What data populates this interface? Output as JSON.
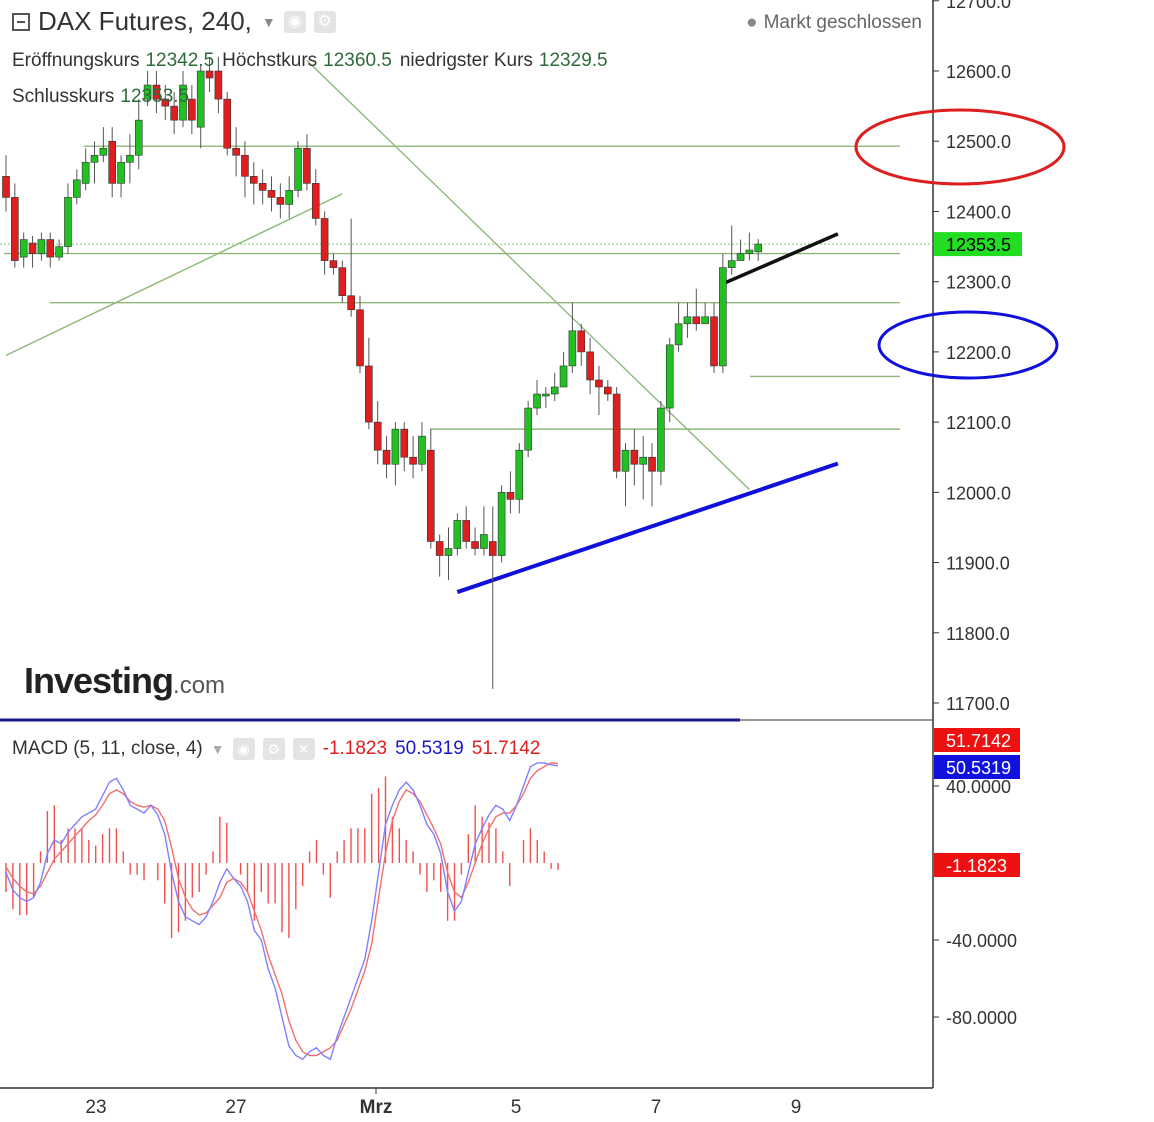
{
  "header": {
    "title": "DAX Futures, 240,",
    "status": "Markt geschlossen",
    "open_label": "Eröffnungskurs",
    "open_value": "12342.5",
    "high_label": "Höchstkurs",
    "high_value": "12360.5",
    "low_label": "niedrigster Kurs",
    "low_value": "12329.5",
    "close_label": "Schlusskurs",
    "close_value": "12353.5"
  },
  "macd_header": {
    "label": "MACD (5, 11, close, 4)",
    "v1": "-1.1823",
    "v2": "50.5319",
    "v3": "51.7142"
  },
  "logo": {
    "brand": "Investing",
    "suffix": ".com"
  },
  "colors": {
    "up": "#22c022",
    "down": "#dd1f1f",
    "macd_line": "#8080ff",
    "signal_line": "#f07070",
    "hist": "#f05050",
    "trend": "#8db87a",
    "blue": "#1010dd",
    "black": "#111111",
    "red_ellipse": "#dd1f1f"
  },
  "chart_data": [
    {
      "type": "candlestick",
      "title": "DAX Futures, 240,",
      "x_ticks": [
        "23",
        "27",
        "Mrz",
        "5",
        "7",
        "9"
      ],
      "ylim": [
        11675,
        12720
      ],
      "y_ticks": [
        "11700.0",
        "11800.0",
        "11900.0",
        "12000.0",
        "12100.0",
        "12200.0",
        "12300.0",
        "12400.0",
        "12500.0",
        "12600.0",
        "12700.0"
      ],
      "last_price_label": "12353.5",
      "last_price": 12353.5,
      "candles": [
        [
          12450,
          12420,
          12480,
          12400
        ],
        [
          12420,
          12330,
          12440,
          12320
        ],
        [
          12335,
          12360,
          12370,
          12320
        ],
        [
          12355,
          12340,
          12365,
          12320
        ],
        [
          12340,
          12360,
          12370,
          12330
        ],
        [
          12360,
          12335,
          12370,
          12320
        ],
        [
          12335,
          12350,
          12360,
          12330
        ],
        [
          12350,
          12420,
          12440,
          12340
        ],
        [
          12420,
          12445,
          12460,
          12410
        ],
        [
          12440,
          12470,
          12490,
          12430
        ],
        [
          12470,
          12480,
          12500,
          12440
        ],
        [
          12480,
          12490,
          12520,
          12470
        ],
        [
          12500,
          12440,
          12520,
          12420
        ],
        [
          12440,
          12470,
          12480,
          12420
        ],
        [
          12470,
          12480,
          12510,
          12440
        ],
        [
          12480,
          12530,
          12560,
          12460
        ],
        [
          12560,
          12580,
          12600,
          12550
        ],
        [
          12580,
          12560,
          12600,
          12540
        ],
        [
          12560,
          12550,
          12580,
          12530
        ],
        [
          12550,
          12530,
          12570,
          12510
        ],
        [
          12530,
          12580,
          12600,
          12520
        ],
        [
          12560,
          12530,
          12580,
          12510
        ],
        [
          12520,
          12600,
          12610,
          12490
        ],
        [
          12600,
          12590,
          12620,
          12570
        ],
        [
          12600,
          12560,
          12620,
          12540
        ],
        [
          12560,
          12490,
          12570,
          12480
        ],
        [
          12490,
          12480,
          12520,
          12450
        ],
        [
          12480,
          12450,
          12500,
          12420
        ],
        [
          12450,
          12440,
          12470,
          12410
        ],
        [
          12440,
          12430,
          12460,
          12410
        ],
        [
          12430,
          12420,
          12450,
          12400
        ],
        [
          12420,
          12410,
          12440,
          12390
        ],
        [
          12410,
          12430,
          12450,
          12390
        ],
        [
          12430,
          12490,
          12500,
          12420
        ],
        [
          12490,
          12440,
          12510,
          12430
        ],
        [
          12440,
          12390,
          12460,
          12380
        ],
        [
          12390,
          12330,
          12400,
          12310
        ],
        [
          12330,
          12320,
          12340,
          12310
        ],
        [
          12320,
          12280,
          12330,
          12270
        ],
        [
          12280,
          12260,
          12390,
          12250
        ],
        [
          12260,
          12180,
          12280,
          12170
        ],
        [
          12180,
          12100,
          12220,
          12090
        ],
        [
          12100,
          12060,
          12130,
          12040
        ],
        [
          12060,
          12040,
          12080,
          12020
        ],
        [
          12040,
          12090,
          12100,
          12010
        ],
        [
          12090,
          12050,
          12100,
          12030
        ],
        [
          12050,
          12040,
          12080,
          12020
        ],
        [
          12040,
          12080,
          12100,
          12030
        ],
        [
          12060,
          11930,
          12090,
          11920
        ],
        [
          11930,
          11910,
          11940,
          11880
        ],
        [
          11910,
          11920,
          11950,
          11875
        ],
        [
          11920,
          11960,
          11970,
          11910
        ],
        [
          11960,
          11930,
          11980,
          11920
        ],
        [
          11930,
          11920,
          11950,
          11910
        ],
        [
          11920,
          11940,
          11980,
          11910
        ],
        [
          11930,
          11910,
          11980,
          11720
        ],
        [
          11910,
          12000,
          12010,
          11900
        ],
        [
          12000,
          11990,
          12030,
          11970
        ],
        [
          11990,
          12060,
          12070,
          11970
        ],
        [
          12060,
          12120,
          12130,
          12050
        ],
        [
          12120,
          12140,
          12160,
          12110
        ],
        [
          12140,
          12140,
          12150,
          12120
        ],
        [
          12140,
          12150,
          12170,
          12130
        ],
        [
          12150,
          12180,
          12200,
          12150
        ],
        [
          12180,
          12230,
          12270,
          12170
        ],
        [
          12230,
          12200,
          12240,
          12180
        ],
        [
          12200,
          12160,
          12220,
          12140
        ],
        [
          12160,
          12150,
          12180,
          12110
        ],
        [
          12150,
          12140,
          12160,
          12130
        ],
        [
          12140,
          12030,
          12150,
          12020
        ],
        [
          12030,
          12060,
          12070,
          11980
        ],
        [
          12060,
          12040,
          12090,
          12010
        ],
        [
          12040,
          12050,
          12080,
          11990
        ],
        [
          12050,
          12030,
          12070,
          11980
        ],
        [
          12030,
          12120,
          12130,
          12010
        ],
        [
          12120,
          12210,
          12220,
          12100
        ],
        [
          12210,
          12240,
          12270,
          12200
        ],
        [
          12240,
          12250,
          12270,
          12220
        ],
        [
          12250,
          12240,
          12290,
          12230
        ],
        [
          12240,
          12250,
          12270,
          12240
        ],
        [
          12250,
          12180,
          12270,
          12170
        ],
        [
          12180,
          12320,
          12340,
          12170
        ],
        [
          12320,
          12330,
          12380,
          12310
        ],
        [
          12330,
          12340,
          12360,
          12330
        ],
        [
          12340,
          12345,
          12370,
          12330
        ],
        [
          12342.5,
          12353.5,
          12360.5,
          12329.5
        ]
      ],
      "overlays": {
        "horizontal_levels": [
          12493,
          12340,
          12270,
          12165,
          12090
        ],
        "lines": [
          {
            "name": "green-rising-trend",
            "from": [
              0,
              12195
            ],
            "to": [
              38,
              12425
            ]
          },
          {
            "name": "green-falling-trend",
            "from": [
              34,
              12615
            ],
            "to": [
              84,
              12004
            ]
          },
          {
            "name": "blue-support",
            "from": [
              51,
              11858
            ],
            "to": [
              94,
              12041
            ]
          },
          {
            "name": "black-trend",
            "from": [
              81,
              12297
            ],
            "to": [
              94,
              12368
            ]
          }
        ]
      }
    },
    {
      "type": "line",
      "title": "MACD (5, 11, close, 4)",
      "ylim": [
        -112,
        58
      ],
      "y_ticks": [
        "40.0000",
        "-40.0000",
        "-80.0000"
      ],
      "label_macd": "50.5319",
      "label_signal": "51.7142",
      "label_hist": "-1.1823",
      "macd": [
        -5,
        -14,
        -18,
        -20,
        -18,
        -10,
        5,
        12,
        10,
        16,
        20,
        24,
        26,
        28,
        35,
        42,
        44,
        38,
        30,
        28,
        26,
        30,
        25,
        15,
        -5,
        -20,
        -28,
        -30,
        -32,
        -28,
        -20,
        -10,
        -3,
        -8,
        -12,
        -20,
        -35,
        -40,
        -55,
        -65,
        -80,
        -95,
        -100,
        -102,
        -98,
        -96,
        -100,
        -102,
        -90,
        -80,
        -70,
        -60,
        -50,
        -30,
        -5,
        20,
        30,
        38,
        42,
        38,
        30,
        20,
        15,
        5,
        -15,
        -25,
        -20,
        -5,
        10,
        18,
        25,
        30,
        28,
        22,
        30,
        40,
        50,
        52,
        52,
        51,
        50.5
      ],
      "signal": [
        -2,
        -8,
        -12,
        -15,
        -16,
        -12,
        -5,
        2,
        6,
        10,
        14,
        18,
        22,
        25,
        30,
        36,
        38,
        36,
        32,
        30,
        29,
        30,
        28,
        22,
        8,
        -8,
        -18,
        -24,
        -27,
        -26,
        -22,
        -18,
        -10,
        -8,
        -10,
        -15,
        -25,
        -35,
        -48,
        -58,
        -68,
        -82,
        -92,
        -98,
        -100,
        -100,
        -98,
        -96,
        -92,
        -84,
        -76,
        -66,
        -56,
        -42,
        -18,
        5,
        22,
        32,
        38,
        36,
        32,
        25,
        18,
        10,
        -5,
        -15,
        -18,
        -10,
        0,
        10,
        18,
        24,
        26,
        26,
        30,
        36,
        44,
        48,
        50,
        52,
        51.7
      ],
      "histogram": [
        -5,
        -8,
        -9,
        -9,
        -6,
        2,
        9,
        10,
        4,
        6,
        6,
        6,
        4,
        3,
        5,
        6,
        6,
        2,
        -2,
        -2,
        -3,
        0,
        -3,
        -7,
        -13,
        -12,
        -10,
        -6,
        -5,
        -2,
        2,
        8,
        7,
        0,
        -2,
        -5,
        -10,
        -5,
        -7,
        -7,
        -12,
        -13,
        -8,
        -4,
        2,
        4,
        -2,
        -6,
        2,
        4,
        6,
        6,
        6,
        12,
        13,
        15,
        8,
        6,
        4,
        2,
        -2,
        -5,
        -3,
        -5,
        -10,
        -10,
        -2,
        5,
        10,
        8,
        7,
        6,
        2,
        -4,
        0,
        4,
        6,
        4,
        2,
        -1,
        -1.2
      ]
    }
  ]
}
